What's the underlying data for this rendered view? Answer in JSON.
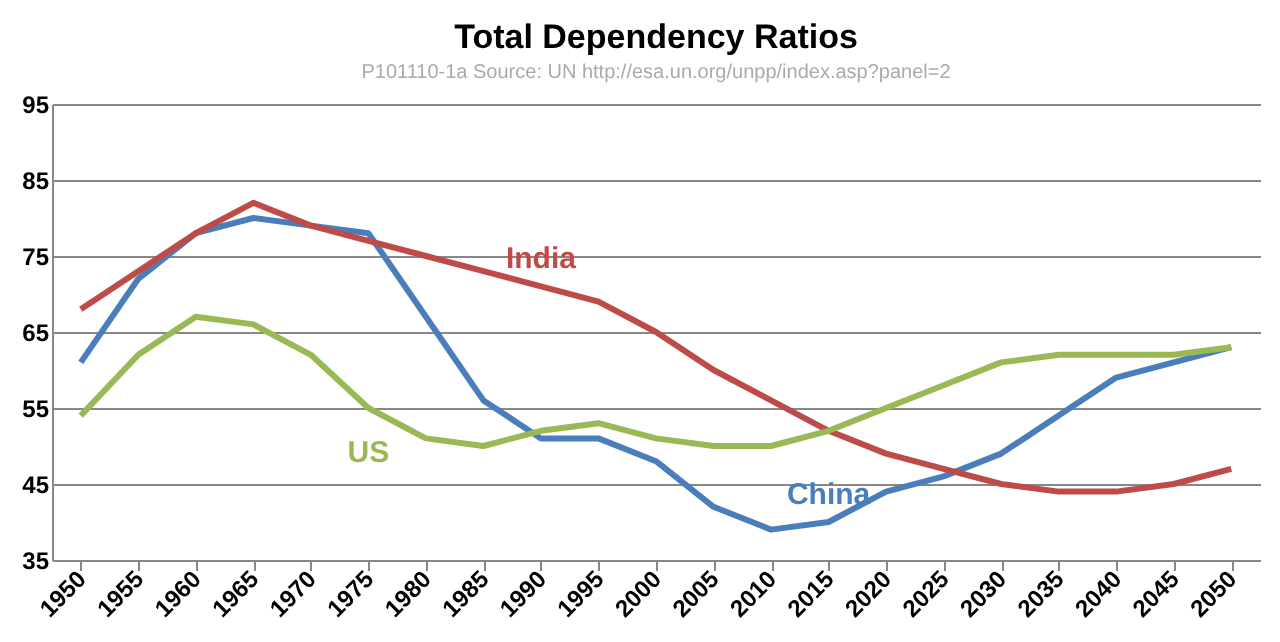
{
  "chart_data": {
    "type": "line",
    "title": "Total Dependency Ratios",
    "subtitle": "P101110-1a Source: UN http://esa.un.org/unpp/index.asp?panel=2",
    "categories": [
      "1950",
      "1955",
      "1960",
      "1965",
      "1970",
      "1975",
      "1980",
      "1985",
      "1990",
      "1995",
      "2000",
      "2005",
      "2010",
      "2015",
      "2020",
      "2025",
      "2030",
      "2035",
      "2040",
      "2045",
      "2050"
    ],
    "series": [
      {
        "name": "China",
        "color": "#4a7ebb",
        "values": [
          61,
          72,
          78,
          80,
          79,
          78,
          67,
          56,
          51,
          51,
          48,
          42,
          39,
          40,
          44,
          46,
          49,
          54,
          59,
          61,
          63
        ]
      },
      {
        "name": "India",
        "color": "#be4b48",
        "values": [
          68,
          73,
          78,
          82,
          79,
          77,
          75,
          73,
          71,
          69,
          65,
          60,
          56,
          52,
          49,
          47,
          45,
          44,
          44,
          45,
          47
        ]
      },
      {
        "name": "US",
        "color": "#98b954",
        "values": [
          54,
          62,
          67,
          66,
          62,
          55,
          51,
          50,
          52,
          53,
          51,
          50,
          50,
          52,
          55,
          58,
          61,
          62,
          62,
          62,
          63
        ]
      }
    ],
    "ylim": [
      35,
      95
    ],
    "yticks": [
      35,
      45,
      55,
      65,
      75,
      85,
      95
    ],
    "grid": "y",
    "legend": false,
    "marker": "none",
    "line_style": "solid"
  }
}
